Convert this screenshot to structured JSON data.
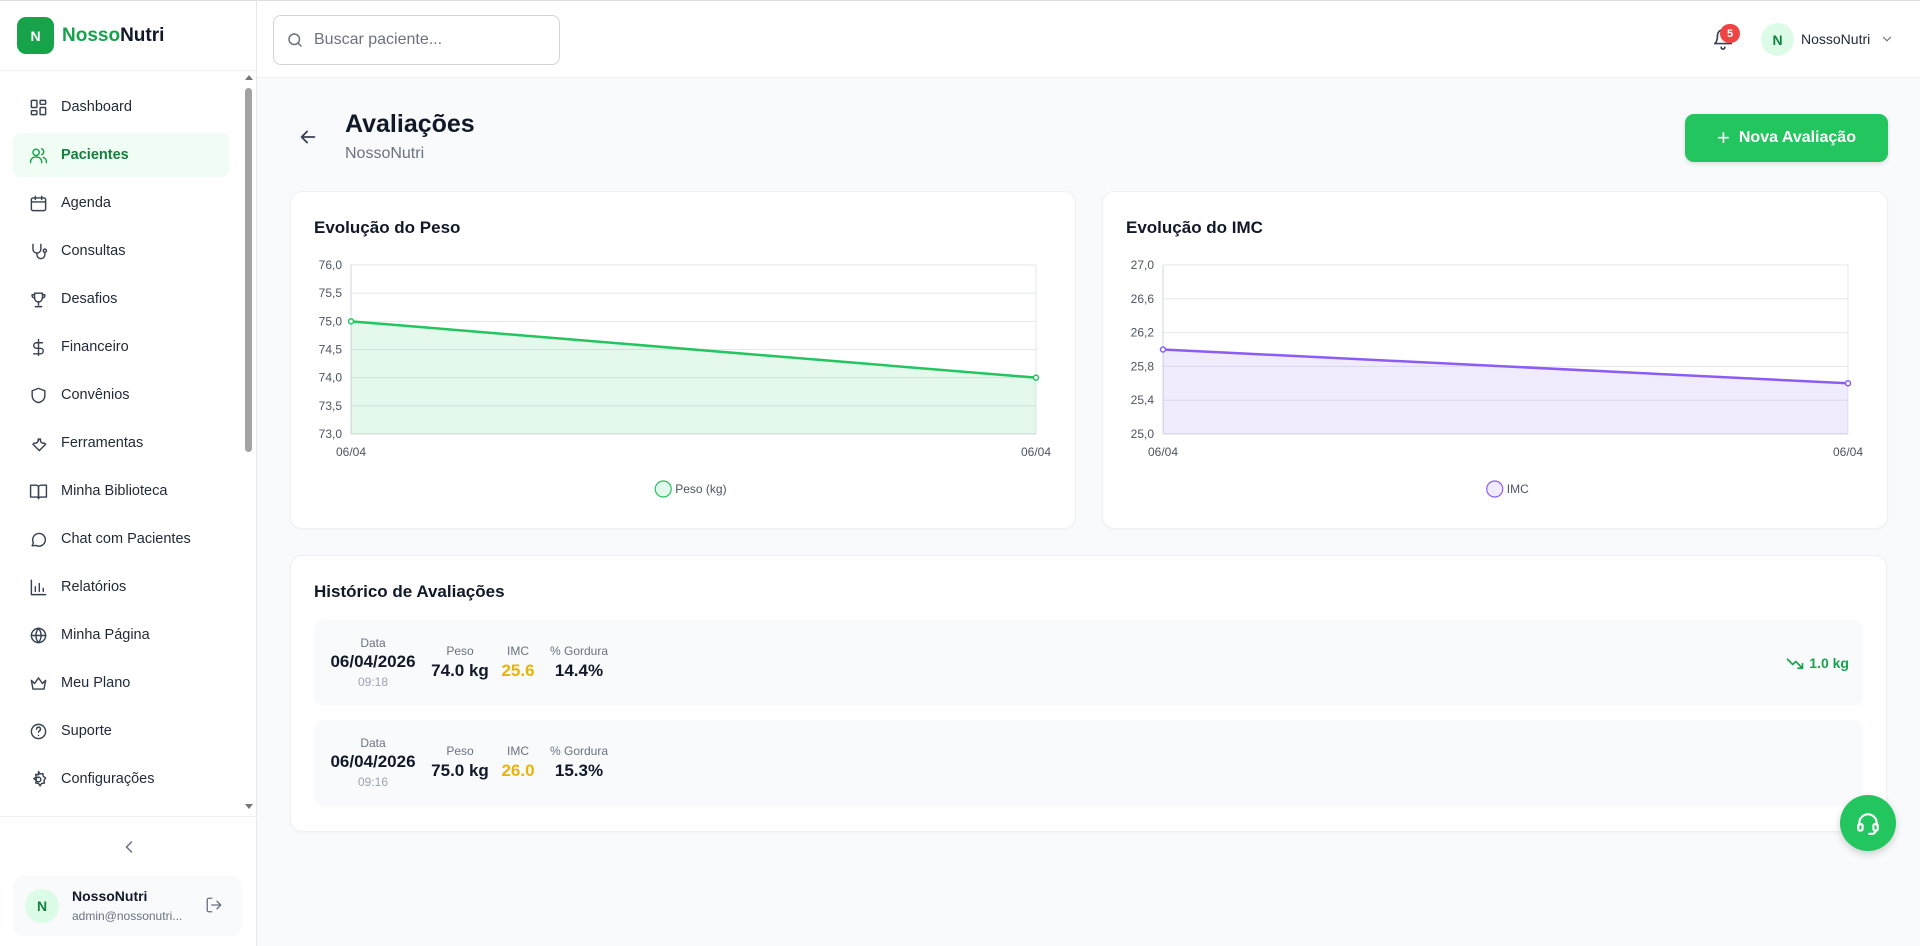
{
  "brand": {
    "logo_letter": "N",
    "name_part1": "Nosso",
    "name_part2": "Nutri"
  },
  "sidebar": {
    "items": [
      {
        "label": "Dashboard",
        "icon": "dashboard-icon"
      },
      {
        "label": "Pacientes",
        "icon": "users-icon"
      },
      {
        "label": "Agenda",
        "icon": "calendar-icon"
      },
      {
        "label": "Consultas",
        "icon": "stethoscope-icon"
      },
      {
        "label": "Desafios",
        "icon": "trophy-icon"
      },
      {
        "label": "Financeiro",
        "icon": "dollar-icon"
      },
      {
        "label": "Convênios",
        "icon": "shield-icon"
      },
      {
        "label": "Ferramentas",
        "icon": "wrench-icon"
      },
      {
        "label": "Minha Biblioteca",
        "icon": "book-icon"
      },
      {
        "label": "Chat com Pacientes",
        "icon": "chat-icon"
      },
      {
        "label": "Relatórios",
        "icon": "bar-chart-icon"
      },
      {
        "label": "Minha Página",
        "icon": "globe-icon"
      },
      {
        "label": "Meu Plano",
        "icon": "crown-icon"
      },
      {
        "label": "Suporte",
        "icon": "help-circle-icon"
      },
      {
        "label": "Configurações",
        "icon": "gear-icon"
      }
    ],
    "active": "Pacientes"
  },
  "user": {
    "avatar_letter": "N",
    "name": "NossoNutri",
    "email": "admin@nossonutri..."
  },
  "topbar": {
    "search_placeholder": "Buscar paciente...",
    "notification_count": "5",
    "avatar_letter": "N",
    "user_name": "NossoNutri"
  },
  "header": {
    "title": "Avaliações",
    "subtitle": "NossoNutri",
    "new_button": "Nova Avaliação"
  },
  "colors": {
    "accent": "#22c55e",
    "weight_line": "#22c55e",
    "imc_line": "#8b5cf6",
    "warn": "#eab308"
  },
  "chart_data": [
    {
      "type": "area",
      "title": "Evolução do Peso",
      "categories": [
        "06/04",
        "06/04"
      ],
      "series": [
        {
          "name": "Peso (kg)",
          "values": [
            75.0,
            74.0
          ]
        }
      ],
      "ylim": [
        73.0,
        76.0
      ],
      "yticks": [
        "76,0",
        "75,5",
        "75,0",
        "74,5",
        "74,0",
        "73,5",
        "73,0"
      ],
      "grid": true,
      "legend": "bottom"
    },
    {
      "type": "area",
      "title": "Evolução do IMC",
      "categories": [
        "06/04",
        "06/04"
      ],
      "series": [
        {
          "name": "IMC",
          "values": [
            26.0,
            25.6
          ]
        }
      ],
      "ylim": [
        25.0,
        27.0
      ],
      "yticks": [
        "27,0",
        "26,6",
        "26,2",
        "25,8",
        "25,4",
        "25,0"
      ],
      "grid": true,
      "legend": "bottom"
    }
  ],
  "history": {
    "title": "Histórico de Avaliações",
    "labels": {
      "date": "Data",
      "weight": "Peso",
      "imc": "IMC",
      "fat": "% Gordura"
    },
    "rows": [
      {
        "date": "06/04/2026",
        "time": "09:18",
        "weight": "74.0 kg",
        "imc": "25.6",
        "fat": "14.4%",
        "trend": "1.0 kg"
      },
      {
        "date": "06/04/2026",
        "time": "09:16",
        "weight": "75.0 kg",
        "imc": "26.0",
        "fat": "15.3%",
        "trend": ""
      }
    ]
  }
}
